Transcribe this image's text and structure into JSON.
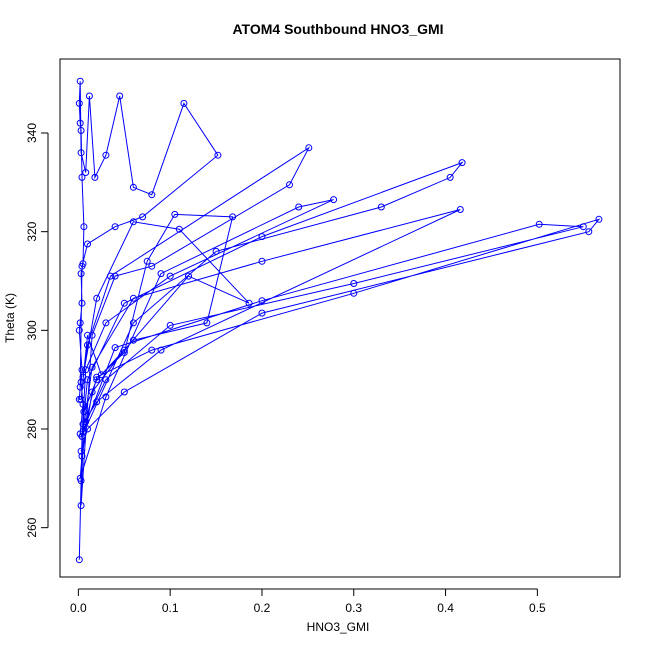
{
  "chart_data": {
    "type": "line",
    "title": "ATOM4 Southbound HNO3_GMI",
    "xlabel": "HNO3_GMI",
    "ylabel": "Theta (K)",
    "xlim": [
      -0.02,
      0.59
    ],
    "ylim": [
      250,
      355
    ],
    "xticks": [
      0.0,
      0.1,
      0.2,
      0.3,
      0.4,
      0.5
    ],
    "xtick_labels": [
      "0.0",
      "0.1",
      "0.2",
      "0.3",
      "0.4",
      "0.5"
    ],
    "yticks": [
      260,
      280,
      300,
      320,
      340
    ],
    "ytick_labels": [
      "260",
      "280",
      "300",
      "320",
      "340"
    ],
    "grid": false,
    "legend": "none",
    "series_color": "#0000ff",
    "marker": "open-circle",
    "series": [
      {
        "x": [
          0.001,
          0.003,
          0.004,
          0.002,
          0.005,
          0.003,
          0.004,
          0.001,
          0.002,
          0.004,
          0.003,
          0.005,
          0.006,
          0.004,
          0.003,
          0.002,
          0.001,
          0.002,
          0.003,
          0.008,
          0.012,
          0.018,
          0.03,
          0.045,
          0.06,
          0.08,
          0.115,
          0.152,
          0.07,
          0.04,
          0.01,
          0.004,
          0.002,
          0.001,
          0.003,
          0.01,
          0.025,
          0.05,
          0.075,
          0.105,
          0.168,
          0.14,
          0.06,
          0.02,
          0.006,
          0.003,
          0.015,
          0.04,
          0.08,
          0.23,
          0.251,
          0.035,
          0.01,
          0.005,
          0.02,
          0.06,
          0.11,
          0.186,
          0.12,
          0.05,
          0.015,
          0.004,
          0.002,
          0.03,
          0.09,
          0.24,
          0.278,
          0.1,
          0.03,
          0.008,
          0.004,
          0.06,
          0.15,
          0.33,
          0.405,
          0.418,
          0.2,
          0.05,
          0.01,
          0.005,
          0.02,
          0.09,
          0.416,
          0.2,
          0.06,
          0.015,
          0.005,
          0.04,
          0.2,
          0.502,
          0.55,
          0.3,
          0.1,
          0.03,
          0.008,
          0.02,
          0.08,
          0.3,
          0.567,
          0.556,
          0.2,
          0.05,
          0.01,
          0.003
        ],
        "y": [
          253.5,
          269.5,
          278.5,
          279.0,
          285.0,
          289.5,
          292.0,
          300.0,
          301.5,
          305.5,
          311.5,
          313.5,
          321.0,
          331.0,
          340.5,
          342.0,
          346.0,
          350.5,
          336.0,
          332.0,
          347.5,
          331.0,
          335.5,
          347.5,
          329.0,
          327.5,
          346.0,
          335.5,
          323.0,
          321.0,
          317.5,
          313.0,
          288.5,
          286.0,
          286.0,
          299.0,
          291.0,
          295.5,
          314.0,
          323.5,
          323.0,
          301.5,
          298.0,
          290.0,
          283.5,
          264.5,
          299.0,
          311.0,
          313.0,
          329.5,
          337.0,
          311.0,
          297.0,
          290.5,
          306.5,
          322.0,
          320.5,
          305.5,
          311.0,
          296.0,
          287.5,
          274.5,
          270.0,
          286.5,
          311.5,
          325.0,
          326.5,
          311.0,
          301.5,
          292.0,
          278.5,
          301.5,
          316.0,
          325.0,
          331.0,
          334.0,
          319.0,
          305.5,
          290.0,
          281.0,
          285.5,
          296.0,
          324.5,
          314.0,
          306.5,
          292.5,
          279.5,
          296.5,
          306.0,
          321.5,
          321.0,
          309.5,
          301.0,
          290.0,
          281.5,
          290.5,
          296.0,
          307.5,
          322.5,
          320.0,
          303.5,
          287.5,
          280.0,
          275.5
        ]
      }
    ]
  }
}
